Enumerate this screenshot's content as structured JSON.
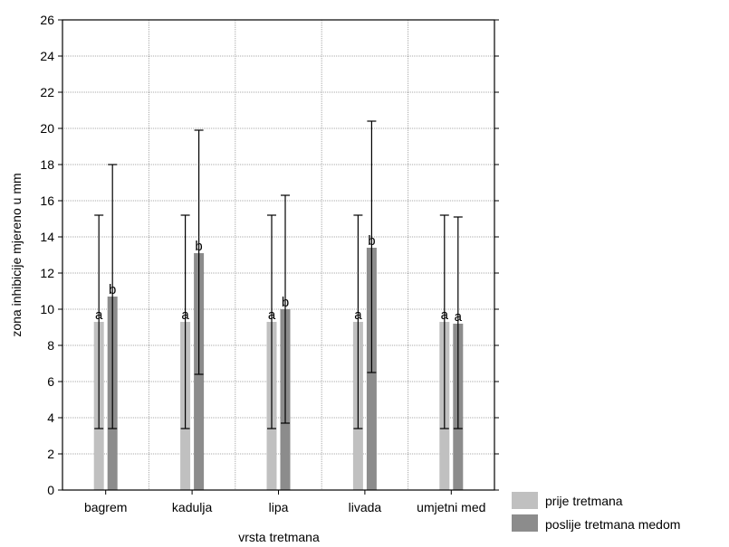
{
  "chart_data": {
    "type": "bar",
    "xlabel": "vrsta tretmana",
    "ylabel": "zona inhibicije mjereno u mm",
    "ylim": [
      0,
      26
    ],
    "yticks": [
      0,
      2,
      4,
      6,
      8,
      10,
      12,
      14,
      16,
      18,
      20,
      22,
      24,
      26
    ],
    "grid": true,
    "legend_position": "bottom-right, outside plot",
    "categories": [
      "bagrem",
      "kadulja",
      "lipa",
      "livada",
      "umjetni med"
    ],
    "series": [
      {
        "name": "prije tretmana",
        "color": "#c0c0c0",
        "values": [
          9.3,
          9.3,
          9.3,
          9.3,
          9.3
        ],
        "error_low": [
          3.4,
          3.4,
          3.4,
          3.4,
          3.4
        ],
        "error_high": [
          15.2,
          15.2,
          15.2,
          15.2,
          15.2
        ],
        "labels": [
          "a",
          "a",
          "a",
          "a",
          "a"
        ]
      },
      {
        "name": "poslije tretmana medom",
        "color": "#8c8c8c",
        "values": [
          10.7,
          13.1,
          10.0,
          13.4,
          9.2
        ],
        "error_low": [
          3.4,
          6.4,
          3.7,
          6.5,
          3.4
        ],
        "error_high": [
          18.0,
          19.9,
          16.3,
          20.4,
          15.1
        ],
        "labels": [
          "b",
          "b",
          "b",
          "b",
          "a"
        ]
      }
    ]
  }
}
